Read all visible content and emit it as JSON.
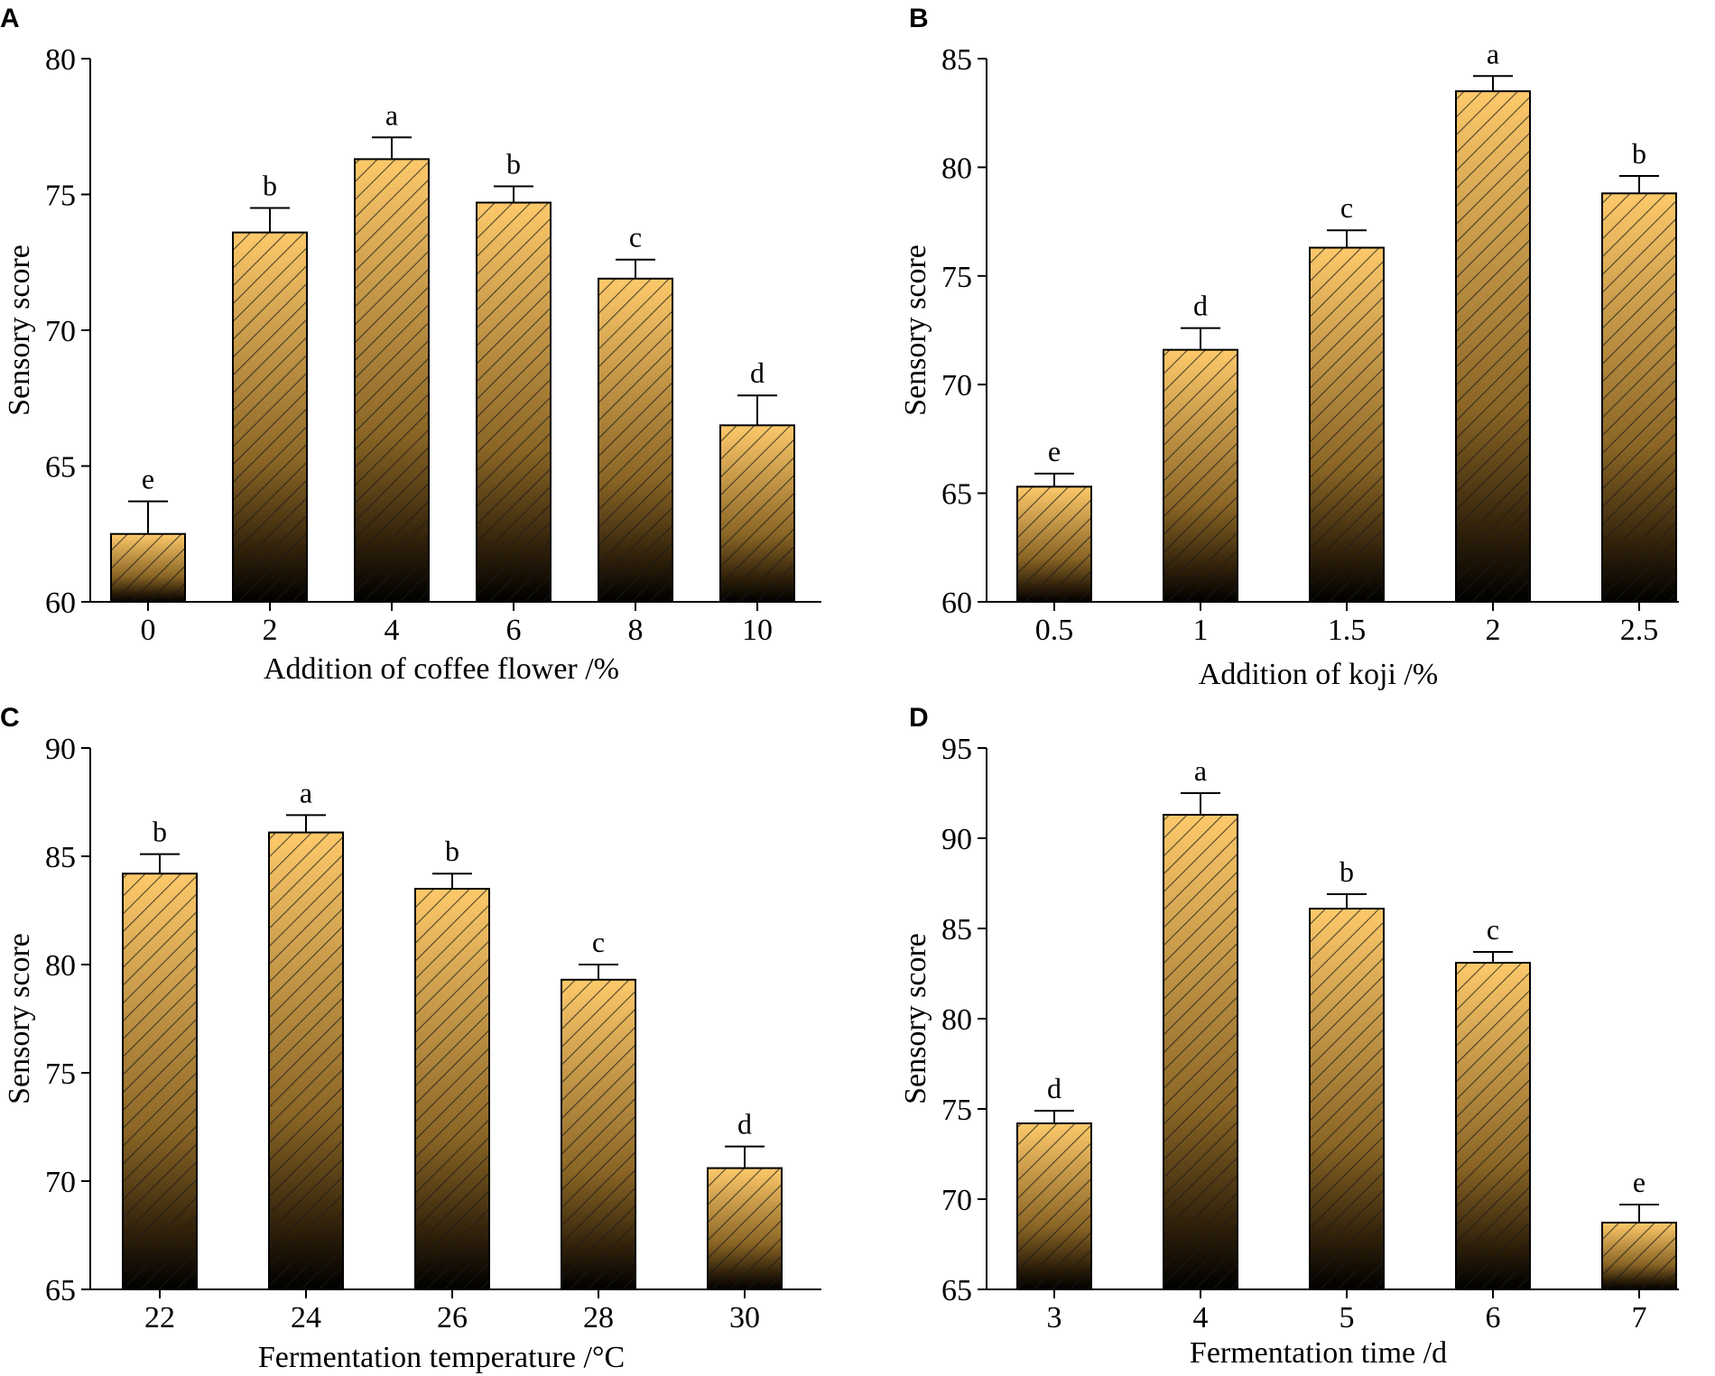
{
  "colors": {
    "bar_top": "#fdc96a",
    "bar_mid": "#8a6525",
    "bar_bottom": "#000000",
    "hatch": "#1a1a1a",
    "axis": "#000000"
  },
  "chart_data": [
    {
      "panel": "A",
      "type": "bar",
      "xlabel": "Addition of coffee flower /%",
      "ylabel": "Sensory score",
      "categories": [
        "0",
        "2",
        "4",
        "6",
        "8",
        "10"
      ],
      "values": [
        62.5,
        73.6,
        76.3,
        74.7,
        71.9,
        66.5
      ],
      "errors": [
        1.2,
        0.9,
        0.8,
        0.6,
        0.7,
        1.1
      ],
      "significance": [
        "e",
        "b",
        "a",
        "b",
        "c",
        "d"
      ],
      "ylim": [
        60,
        80
      ],
      "yticks": [
        "60",
        "65",
        "70",
        "75",
        "80"
      ]
    },
    {
      "panel": "B",
      "type": "bar",
      "xlabel": "Addition of koji /%",
      "ylabel": "Sensory score",
      "categories": [
        "0.5",
        "1",
        "1.5",
        "2",
        "2.5"
      ],
      "values": [
        65.3,
        71.6,
        76.3,
        83.5,
        78.8
      ],
      "errors": [
        0.6,
        1.0,
        0.8,
        0.7,
        0.8
      ],
      "significance": [
        "e",
        "d",
        "c",
        "a",
        "b"
      ],
      "ylim": [
        60,
        85
      ],
      "yticks": [
        "60",
        "65",
        "70",
        "75",
        "80",
        "85"
      ]
    },
    {
      "panel": "C",
      "type": "bar",
      "xlabel": "Fermentation temperature /°C",
      "ylabel": "Sensory score",
      "categories": [
        "22",
        "24",
        "26",
        "28",
        "30"
      ],
      "values": [
        84.2,
        86.1,
        83.5,
        79.3,
        70.6
      ],
      "errors": [
        0.9,
        0.8,
        0.7,
        0.7,
        1.0
      ],
      "significance": [
        "b",
        "a",
        "b",
        "c",
        "d"
      ],
      "ylim": [
        65,
        90
      ],
      "yticks": [
        "65",
        "70",
        "75",
        "80",
        "85",
        "90"
      ]
    },
    {
      "panel": "D",
      "type": "bar",
      "xlabel": "Fermentation time /d",
      "ylabel": "Sensory score",
      "categories": [
        "3",
        "4",
        "5",
        "6",
        "7"
      ],
      "values": [
        74.2,
        91.3,
        86.1,
        83.1,
        68.7
      ],
      "errors": [
        0.7,
        1.2,
        0.8,
        0.6,
        1.0
      ],
      "significance": [
        "d",
        "a",
        "b",
        "c",
        "e"
      ],
      "ylim": [
        65,
        95
      ],
      "yticks": [
        "65",
        "70",
        "75",
        "80",
        "85",
        "90",
        "95"
      ]
    }
  ]
}
